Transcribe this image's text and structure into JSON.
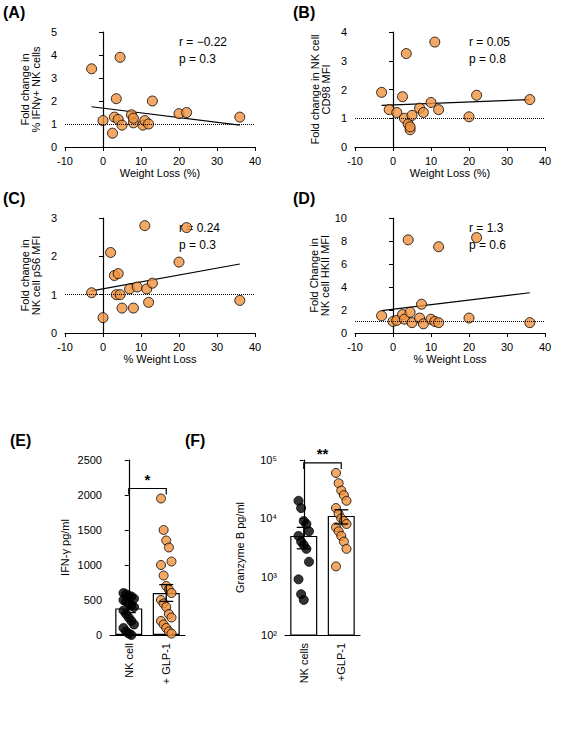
{
  "chart_data": [
    {
      "type": "scatter",
      "title": "(A)",
      "x_label": "Weight Loss (%)",
      "y_label": "Fold change in\n% IFNγ+ NK cells",
      "annotations": [
        "r = −0.22",
        "p = 0.3"
      ],
      "color": "#f0923e",
      "x": [
        -3,
        0,
        2.5,
        3,
        3.5,
        4,
        4.5,
        5,
        7.5,
        8,
        8,
        10.5,
        11,
        12,
        13,
        20,
        22,
        36
      ],
      "values": [
        3.4,
        1.15,
        0.6,
        1.3,
        2.1,
        1.2,
        3.9,
        0.95,
        1.4,
        1.05,
        1.25,
        0.95,
        1.15,
        1.0,
        2.0,
        1.45,
        1.5,
        1.3
      ],
      "fit": {
        "x": [
          -3,
          36
        ],
        "values": [
          1.75,
          0.95
        ]
      },
      "reference_line": 1,
      "xlim": [
        -10,
        40
      ],
      "xticks": [
        -10,
        0,
        10,
        20,
        30,
        40
      ],
      "ylim": [
        0,
        5
      ],
      "yticks": [
        0,
        1,
        2,
        3,
        4,
        5
      ]
    },
    {
      "type": "scatter",
      "title": "(B)",
      "x_label": "Weight Loss (%)",
      "y_label": "Fold change in NK cell\nCD98 MFI",
      "annotations": [
        "r = 0.05",
        "p = 0.8"
      ],
      "color": "#f0923e",
      "x": [
        -3,
        -1,
        1,
        2.5,
        3,
        3.5,
        4,
        4.5,
        4.5,
        5,
        7,
        8,
        10,
        11,
        12,
        20,
        22,
        36
      ],
      "values": [
        1.9,
        1.3,
        1.2,
        1.75,
        1.0,
        3.25,
        0.8,
        0.6,
        0.7,
        1.1,
        1.35,
        1.2,
        1.55,
        3.65,
        1.3,
        1.05,
        1.8,
        1.65
      ],
      "fit": {
        "x": [
          -3,
          36
        ],
        "values": [
          1.45,
          1.65
        ]
      },
      "reference_line": 1,
      "xlim": [
        -10,
        40
      ],
      "xticks": [
        -10,
        0,
        10,
        20,
        30,
        40
      ],
      "ylim": [
        0,
        4
      ],
      "yticks": [
        0,
        1,
        2,
        3,
        4
      ]
    },
    {
      "type": "scatter",
      "title": "(C)",
      "x_label": "% Weight Loss",
      "y_label": "Fold change in\nNK cell pS6 MFI",
      "annotations": [
        "r = 0.24",
        "p = 0.3"
      ],
      "color": "#f0923e",
      "x": [
        -3,
        0,
        2,
        3,
        3.5,
        4,
        4.5,
        5,
        7,
        8,
        9,
        11,
        11.5,
        12,
        13,
        20,
        22,
        36
      ],
      "values": [
        1.05,
        0.4,
        2.1,
        1.5,
        1.0,
        1.55,
        1.0,
        0.65,
        1.15,
        0.65,
        1.2,
        2.8,
        1.15,
        0.8,
        1.3,
        1.85,
        2.75,
        0.85
      ],
      "fit": {
        "x": [
          -3,
          36
        ],
        "values": [
          1.1,
          1.8
        ]
      },
      "reference_line": 1,
      "xlim": [
        -10,
        40
      ],
      "xticks": [
        -10,
        0,
        10,
        20,
        30,
        40
      ],
      "ylim": [
        0,
        3
      ],
      "yticks": [
        0,
        1,
        2,
        3
      ]
    },
    {
      "type": "scatter",
      "title": "(D)",
      "x_label": "% Weight Loss",
      "y_label": "Fold Change in\nNK cell HKII MFI",
      "annotations": [
        "r = 1.3",
        "p = 0.6"
      ],
      "color": "#f0923e",
      "x": [
        -3,
        0,
        1,
        2.5,
        3,
        4,
        4.5,
        5,
        7,
        7.5,
        8,
        10,
        11,
        12,
        12,
        20,
        22,
        36
      ],
      "values": [
        1.5,
        1.0,
        1.1,
        1.6,
        1.2,
        8.1,
        1.8,
        0.9,
        1.3,
        2.5,
        0.8,
        1.2,
        1.0,
        7.5,
        0.9,
        1.3,
        8.3,
        0.9
      ],
      "fit": {
        "x": [
          -3,
          36
        ],
        "values": [
          1.95,
          3.5
        ]
      },
      "reference_line": 1,
      "xlim": [
        -10,
        40
      ],
      "xticks": [
        -10,
        0,
        10,
        20,
        30,
        40
      ],
      "ylim": [
        0,
        10
      ],
      "yticks": [
        0,
        2,
        4,
        6,
        8,
        10
      ]
    },
    {
      "type": "bar",
      "title": "(E)",
      "y_label": "IFN-γ pg/ml",
      "annotations": [
        "*"
      ],
      "categories": [
        "NK cell",
        "+ GLP-1"
      ],
      "series": [
        {
          "type": "bar",
          "color": "#ffffff",
          "values": [
            380,
            600
          ],
          "errors": [
            60,
            120
          ]
        },
        {
          "type": "scatter",
          "colors": [
            "#000000",
            "#f0923e"
          ],
          "values": [
            [
              600,
              580,
              560,
              550,
              520,
              500,
              480,
              450,
              420,
              400,
              350,
              300,
              250,
              200,
              150,
              100,
              50,
              20,
              0
            ],
            [
              1950,
              1500,
              1350,
              1250,
              1050,
              1000,
              850,
              700,
              650,
              600,
              500,
              450,
              400,
              300,
              250,
              200,
              150,
              100,
              50,
              20
            ]
          ]
        }
      ],
      "ylim": [
        0,
        2500
      ],
      "yticks": [
        0,
        500,
        1000,
        1500,
        2000,
        2500
      ]
    },
    {
      "type": "bar",
      "title": "(F)",
      "y_label": "Granzyme B pg/ml",
      "annotations": [
        "**"
      ],
      "log": "y",
      "categories": [
        "NK cells",
        "+GLP-1"
      ],
      "series": [
        {
          "type": "bar",
          "color": "#ffffff",
          "values": [
            5000,
            11000
          ],
          "errors": [
            2000,
            3000
          ]
        },
        {
          "type": "scatter",
          "colors": [
            "#000000",
            "#f0923e"
          ],
          "values": [
            [
              20000,
              15000,
              9000,
              8000,
              6000,
              5000,
              4000,
              3500,
              3000,
              1800,
              900,
              500,
              400
            ],
            [
              60000,
              40000,
              30000,
              25000,
              20000,
              15000,
              12000,
              10000,
              9000,
              8000,
              7000,
              6000,
              5000,
              4000,
              3000,
              1500
            ]
          ]
        }
      ],
      "ylim": [
        100,
        100000
      ],
      "yticks": [
        {
          "value": 100,
          "label": "10²"
        },
        {
          "value": 1000,
          "label": "10³"
        },
        {
          "value": 10000,
          "label": "10⁴"
        },
        {
          "value": 100000,
          "label": "10⁵"
        }
      ]
    }
  ]
}
